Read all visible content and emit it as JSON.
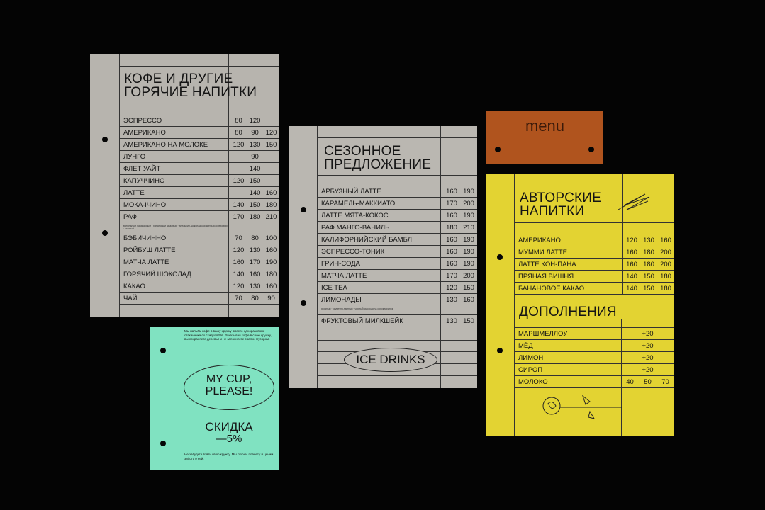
{
  "hot_menu": {
    "title_1": "Кофе и другие",
    "title_2": "горячие напитки",
    "items": [
      {
        "name": "ЭСПРЕССО",
        "prices": [
          "80",
          "120",
          ""
        ]
      },
      {
        "name": "АМЕРИКАНО",
        "prices": [
          "80",
          "90",
          "120"
        ]
      },
      {
        "name": "АМЕРИКАНО НА МОЛОКЕ",
        "prices": [
          "120",
          "130",
          "150"
        ]
      },
      {
        "name": "ЛУНГО",
        "prices": [
          "",
          "90",
          ""
        ]
      },
      {
        "name": "ФЛЕТ УАЙТ",
        "prices": [
          "",
          "140",
          ""
        ]
      },
      {
        "name": "КАПУЧЧИНО",
        "prices": [
          "120",
          "150",
          ""
        ]
      },
      {
        "name": "ЛАТТЕ",
        "prices": [
          "",
          "140",
          "160"
        ]
      },
      {
        "name": "МОКАЧЧИНО",
        "prices": [
          "140",
          "150",
          "180"
        ]
      },
      {
        "name": "РАФ",
        "prices": [
          "170",
          "180",
          "210"
        ],
        "note": "ванильный лавандовый · банановый медовый · апельсин-шоколад карамельно-ореховый · сырный"
      },
      {
        "name": "БЭБИЧИННО",
        "prices": [
          "70",
          "80",
          "100"
        ]
      },
      {
        "name": "РОЙБУШ ЛАТТЕ",
        "prices": [
          "120",
          "130",
          "160"
        ]
      },
      {
        "name": "МАТЧА ЛАТТЕ",
        "prices": [
          "160",
          "170",
          "190"
        ]
      },
      {
        "name": "ГОРЯЧИЙ ШОКОЛАД",
        "prices": [
          "140",
          "160",
          "180"
        ]
      },
      {
        "name": "КАКАО",
        "prices": [
          "120",
          "130",
          "160"
        ]
      },
      {
        "name": "ЧАЙ",
        "prices": [
          "70",
          "80",
          "90"
        ]
      }
    ]
  },
  "seasonal_menu": {
    "title_1": "Сезонное",
    "title_2": "предложение",
    "footer_label": "ICE DRINKS",
    "items": [
      {
        "name": "АРБУЗНЫЙ ЛАТТЕ",
        "prices": [
          "160",
          "190"
        ]
      },
      {
        "name": "КАРАМЕЛЬ-МАККИАТО",
        "prices": [
          "170",
          "200"
        ]
      },
      {
        "name": "ЛАТТЕ МЯТА-КОКОС",
        "prices": [
          "160",
          "190"
        ]
      },
      {
        "name": "РАФ МАНГО-ВАНИЛЬ",
        "prices": [
          "180",
          "210"
        ]
      },
      {
        "name": "КАЛИФОРНИЙСКИЙ БАМБЛ",
        "prices": [
          "160",
          "190"
        ]
      },
      {
        "name": "ЭСПРЕССО-ТОНИК",
        "prices": [
          "160",
          "190"
        ]
      },
      {
        "name": "ГРИН-СОДА",
        "prices": [
          "160",
          "190"
        ]
      },
      {
        "name": "МАТЧА ЛАТТЕ",
        "prices": [
          "170",
          "200"
        ]
      },
      {
        "name": "ICE TEA",
        "prices": [
          "120",
          "150"
        ]
      },
      {
        "name": "ЛИМОНАДЫ",
        "prices": [
          "130",
          "160"
        ],
        "note": "ягодный · огуречно-мятный · черный смородина с розмарином"
      },
      {
        "name": "ФРУКТОВЫЙ МИЛКШЕЙК",
        "prices": [
          "130",
          "150"
        ]
      }
    ]
  },
  "menu_tag": {
    "label": "menu",
    "color": "#b0541e"
  },
  "signature_menu": {
    "title_1": "Авторские",
    "title_2": "напитки",
    "items": [
      {
        "name": "АМЕРИКАНО",
        "prices": [
          "120",
          "130",
          "160"
        ]
      },
      {
        "name": "МУММИ ЛАТТЕ",
        "prices": [
          "160",
          "180",
          "200"
        ]
      },
      {
        "name": "ЛАТТЕ КОН-ПАНА",
        "prices": [
          "160",
          "180",
          "200"
        ]
      },
      {
        "name": "ПРЯНАЯ ВИШНЯ",
        "prices": [
          "140",
          "150",
          "180"
        ]
      },
      {
        "name": "БАНАНОВОЕ КАКАО",
        "prices": [
          "140",
          "150",
          "180"
        ]
      }
    ],
    "addons_title": "Дополнения",
    "addons": [
      {
        "name": "МАРШМЕЛЛОУ",
        "prices": [
          "+20"
        ]
      },
      {
        "name": "МЁД",
        "prices": [
          "+20"
        ]
      },
      {
        "name": "ЛИМОН",
        "prices": [
          "+20"
        ]
      },
      {
        "name": "СИРОП",
        "prices": [
          "+20"
        ]
      },
      {
        "name": "МОЛОКО",
        "prices": [
          "40",
          "50",
          "70"
        ]
      }
    ]
  },
  "cup_card": {
    "intro": "Мы нальём кофе в вашу кружку вместо одноразового стаканчика со скидкой 5%. Заказывая кофе в свою кружку, вы сохраняете деревья и не заполняете свалки мусором.",
    "slogan_1": "MY CUP,",
    "slogan_2": "PLEASE!",
    "discount_label": "СКИДКА",
    "discount_value": "—5%",
    "footer": "Не забудьте взять свою кружку. Мы любим планету и ценим заботу о ней."
  }
}
